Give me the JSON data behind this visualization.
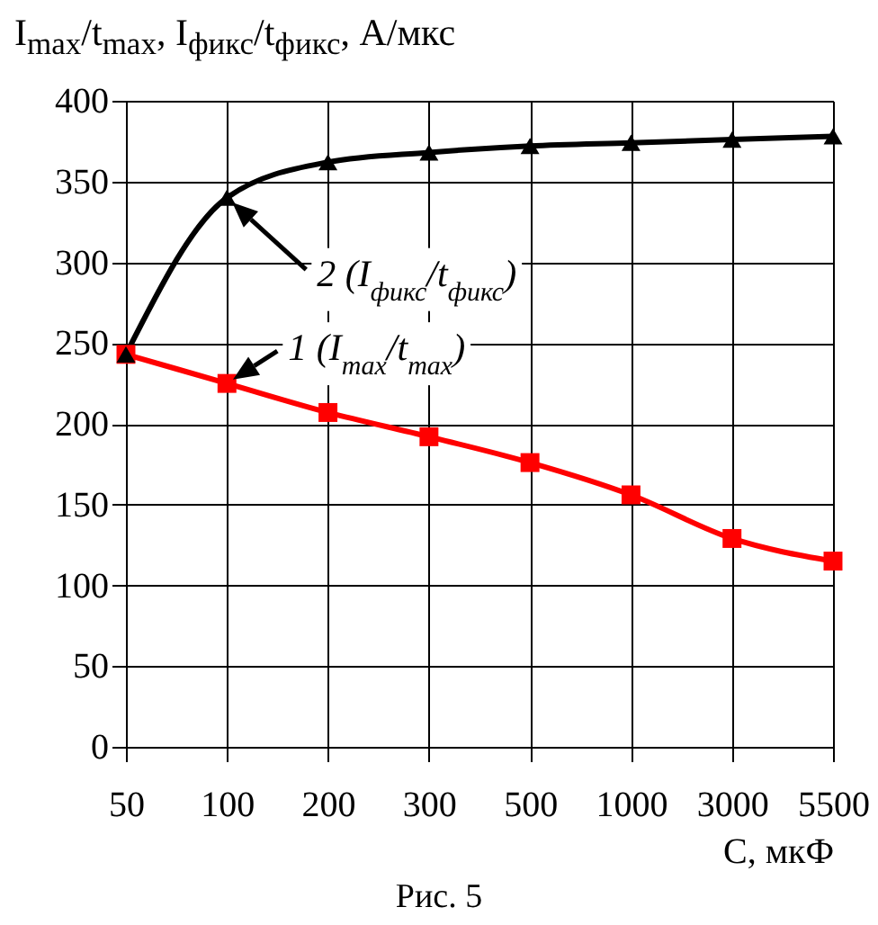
{
  "chart_data": {
    "type": "line",
    "ylabel": "I$_{max}$/t$_{max}$, I$_{фикс}$/t$_{фикс}$, А/мкс",
    "xlabel": "C, мкФ",
    "categories": [
      "50",
      "100",
      "200",
      "300",
      "500",
      "1000",
      "3000",
      "5500"
    ],
    "series": [
      {
        "color": "#ff0000",
        "marker": "square",
        "values": [
          243,
          225,
          207,
          192,
          176,
          156,
          129,
          115
        ]
      },
      {
        "color": "#000000",
        "marker": "triangle",
        "values": [
          243,
          340,
          362,
          368,
          372,
          374,
          376,
          378
        ]
      }
    ],
    "ylim": [
      0,
      400
    ],
    "yticks": [
      0,
      50,
      100,
      150,
      200,
      250,
      300,
      350,
      400
    ],
    "grid": true,
    "annotations": [
      {
        "text": "2 (I$_{фикс}$/t$_{фикс}$)",
        "x": "100",
        "y": 340
      },
      {
        "text": "1 (I$_{max}$/t$_{max}$)",
        "x": "100",
        "y": 225
      },
      "Рис. 5"
    ]
  }
}
